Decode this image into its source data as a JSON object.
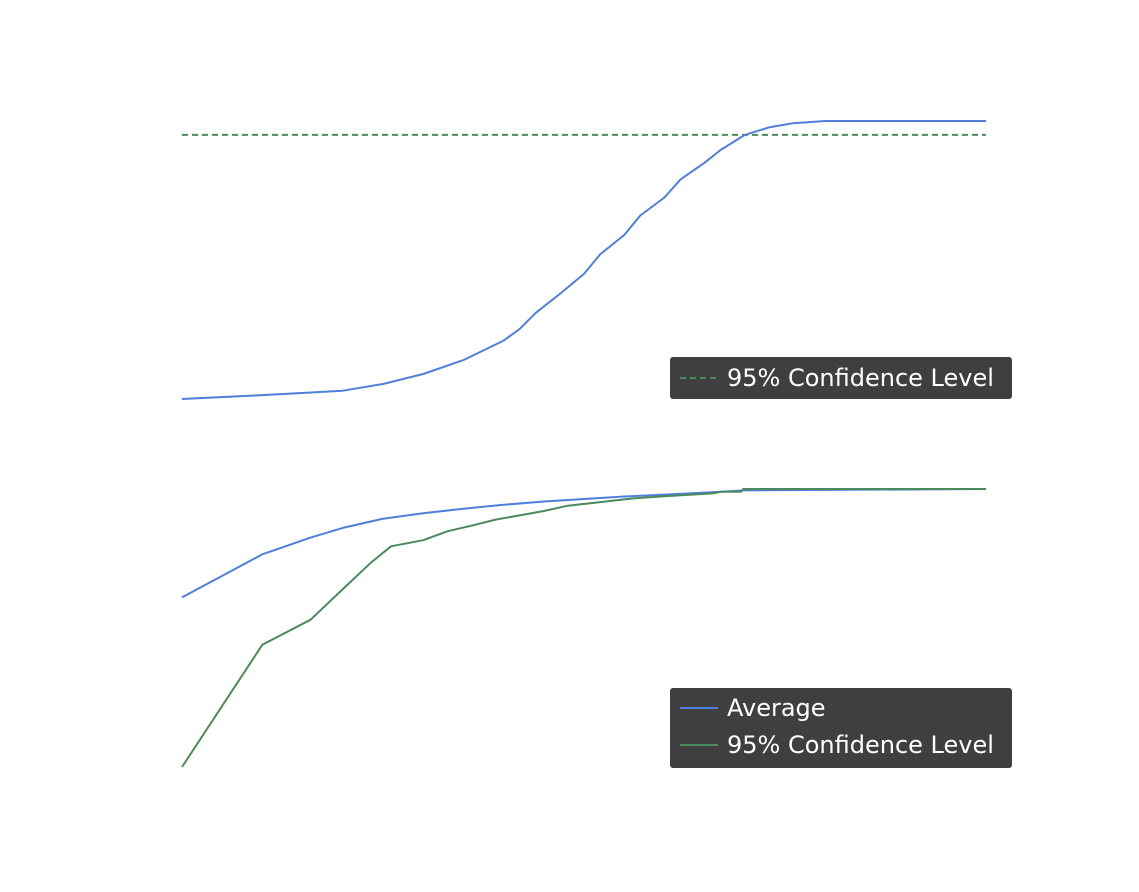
{
  "chart_data": [
    {
      "type": "line",
      "title": "",
      "xlabel": "",
      "ylabel": "",
      "grid": false,
      "axes_visible": false,
      "legend": {
        "placement": "lower-right",
        "background": "#3f3f3f",
        "text_color": "#ffffff",
        "entries": [
          {
            "label": "95% Confidence Level",
            "color": "#4a8a5c",
            "style": "dashed"
          }
        ]
      },
      "xlim": [
        0,
        1
      ],
      "ylim": [
        0,
        1
      ],
      "reference_lines": [
        {
          "name": "95% Confidence Level",
          "y": 0.95,
          "color": "#4a8a5c",
          "style": "dashed"
        }
      ],
      "series": [
        {
          "color": "#4f7fd8",
          "style": "solid",
          "points": [
            [
              0.0,
              0.0
            ],
            [
              0.1,
              0.014
            ],
            [
              0.2,
              0.03
            ],
            [
              0.25,
              0.054
            ],
            [
              0.3,
              0.09
            ],
            [
              0.35,
              0.14
            ],
            [
              0.4,
              0.21
            ],
            [
              0.42,
              0.252
            ],
            [
              0.44,
              0.31
            ],
            [
              0.47,
              0.378
            ],
            [
              0.5,
              0.45
            ],
            [
              0.52,
              0.52
            ],
            [
              0.55,
              0.59
            ],
            [
              0.57,
              0.66
            ],
            [
              0.6,
              0.725
            ],
            [
              0.62,
              0.79
            ],
            [
              0.65,
              0.85
            ],
            [
              0.67,
              0.896
            ],
            [
              0.7,
              0.95
            ],
            [
              0.73,
              0.977
            ],
            [
              0.76,
              0.992
            ],
            [
              0.8,
              1.0
            ],
            [
              1.0,
              1.0
            ]
          ]
        }
      ]
    },
    {
      "type": "line",
      "title": "",
      "xlabel": "",
      "ylabel": "",
      "grid": false,
      "axes_visible": false,
      "legend": {
        "placement": "lower-right",
        "background": "#3f3f3f",
        "text_color": "#ffffff",
        "entries": [
          {
            "label": "Average",
            "color": "#4f7fd8",
            "style": "solid"
          },
          {
            "label": "95% Confidence Level",
            "color": "#4a8a5c",
            "style": "solid"
          }
        ]
      },
      "xlim": [
        0,
        1
      ],
      "ylim": [
        0,
        1
      ],
      "series": [
        {
          "name": "Average",
          "color": "#4f7fd8",
          "style": "solid",
          "points": [
            [
              0.0,
              0.61
            ],
            [
              0.1,
              0.765
            ],
            [
              0.16,
              0.825
            ],
            [
              0.2,
              0.86
            ],
            [
              0.25,
              0.893
            ],
            [
              0.3,
              0.913
            ],
            [
              0.35,
              0.929
            ],
            [
              0.4,
              0.943
            ],
            [
              0.45,
              0.955
            ],
            [
              0.5,
              0.964
            ],
            [
              0.55,
              0.973
            ],
            [
              0.6,
              0.98
            ],
            [
              0.65,
              0.987
            ],
            [
              0.7,
              0.995
            ],
            [
              1.0,
              1.0
            ]
          ]
        },
        {
          "name": "95% Confidence Level",
          "color": "#4a8a5c",
          "style": "solid",
          "points": [
            [
              0.0,
              0.0
            ],
            [
              0.1,
              0.44
            ],
            [
              0.16,
              0.53
            ],
            [
              0.2,
              0.64
            ],
            [
              0.235,
              0.735
            ],
            [
              0.26,
              0.794
            ],
            [
              0.3,
              0.816
            ],
            [
              0.33,
              0.848
            ],
            [
              0.36,
              0.868
            ],
            [
              0.39,
              0.89
            ],
            [
              0.42,
              0.905
            ],
            [
              0.45,
              0.921
            ],
            [
              0.48,
              0.94
            ],
            [
              0.52,
              0.953
            ],
            [
              0.56,
              0.966
            ],
            [
              0.6,
              0.974
            ],
            [
              0.66,
              0.984
            ],
            [
              0.67,
              0.99
            ],
            [
              0.695,
              0.99
            ],
            [
              0.698,
              1.0
            ],
            [
              1.0,
              1.0
            ]
          ]
        }
      ]
    }
  ]
}
